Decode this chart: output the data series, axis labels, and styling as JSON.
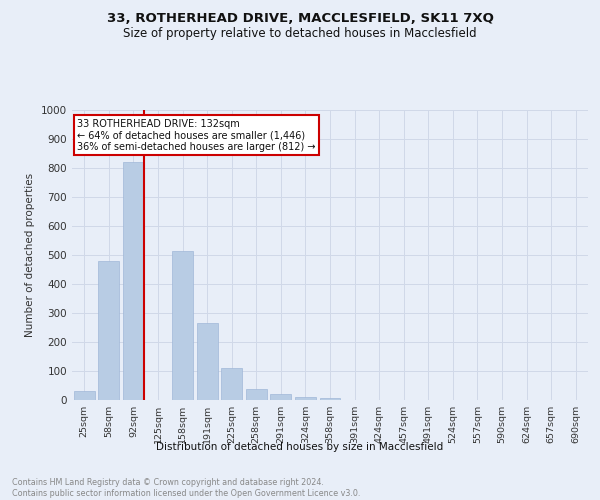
{
  "title": "33, ROTHERHEAD DRIVE, MACCLESFIELD, SK11 7XQ",
  "subtitle": "Size of property relative to detached houses in Macclesfield",
  "xlabel": "Distribution of detached houses by size in Macclesfield",
  "ylabel": "Number of detached properties",
  "footnote": "Contains HM Land Registry data © Crown copyright and database right 2024.\nContains public sector information licensed under the Open Government Licence v3.0.",
  "categories": [
    "25sqm",
    "58sqm",
    "92sqm",
    "125sqm",
    "158sqm",
    "191sqm",
    "225sqm",
    "258sqm",
    "291sqm",
    "324sqm",
    "358sqm",
    "391sqm",
    "424sqm",
    "457sqm",
    "491sqm",
    "524sqm",
    "557sqm",
    "590sqm",
    "624sqm",
    "657sqm",
    "690sqm"
  ],
  "values": [
    30,
    480,
    820,
    0,
    515,
    265,
    110,
    37,
    22,
    10,
    7,
    0,
    0,
    0,
    0,
    0,
    0,
    0,
    0,
    0,
    0
  ],
  "bar_color": "#b8cce4",
  "bar_edge_color": "#a0b8d8",
  "grid_color": "#d0d8e8",
  "vline_color": "#cc0000",
  "annotation_text": "33 ROTHERHEAD DRIVE: 132sqm\n← 64% of detached houses are smaller (1,446)\n36% of semi-detached houses are larger (812) →",
  "annotation_box_color": "#ffffff",
  "annotation_box_edge": "#cc0000",
  "ylim": [
    0,
    1000
  ],
  "yticks": [
    0,
    100,
    200,
    300,
    400,
    500,
    600,
    700,
    800,
    900,
    1000
  ],
  "background_color": "#e8eef8",
  "title_fontsize": 9.5,
  "subtitle_fontsize": 8.5
}
